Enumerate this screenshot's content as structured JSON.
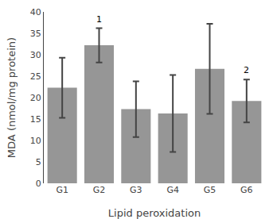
{
  "chart_data": {
    "type": "bar",
    "xlabel": "Lipid peroxidation",
    "ylabel": "MDA (nmol/mg protein)",
    "categories": [
      "G1",
      "G2",
      "G3",
      "G4",
      "G5",
      "G6"
    ],
    "values": [
      22.3,
      32.2,
      17.3,
      16.3,
      26.7,
      19.2
    ],
    "errors": [
      7.0,
      4.0,
      6.5,
      9.0,
      10.5,
      5.0
    ],
    "color": "#969696",
    "ylim": [
      0,
      40
    ],
    "yticks": [
      0,
      5,
      10,
      15,
      20,
      25,
      30,
      35,
      40
    ],
    "annotations": [
      {
        "text": "1",
        "category": "G2"
      },
      {
        "text": "2",
        "category": "G6"
      }
    ],
    "grid": false
  }
}
